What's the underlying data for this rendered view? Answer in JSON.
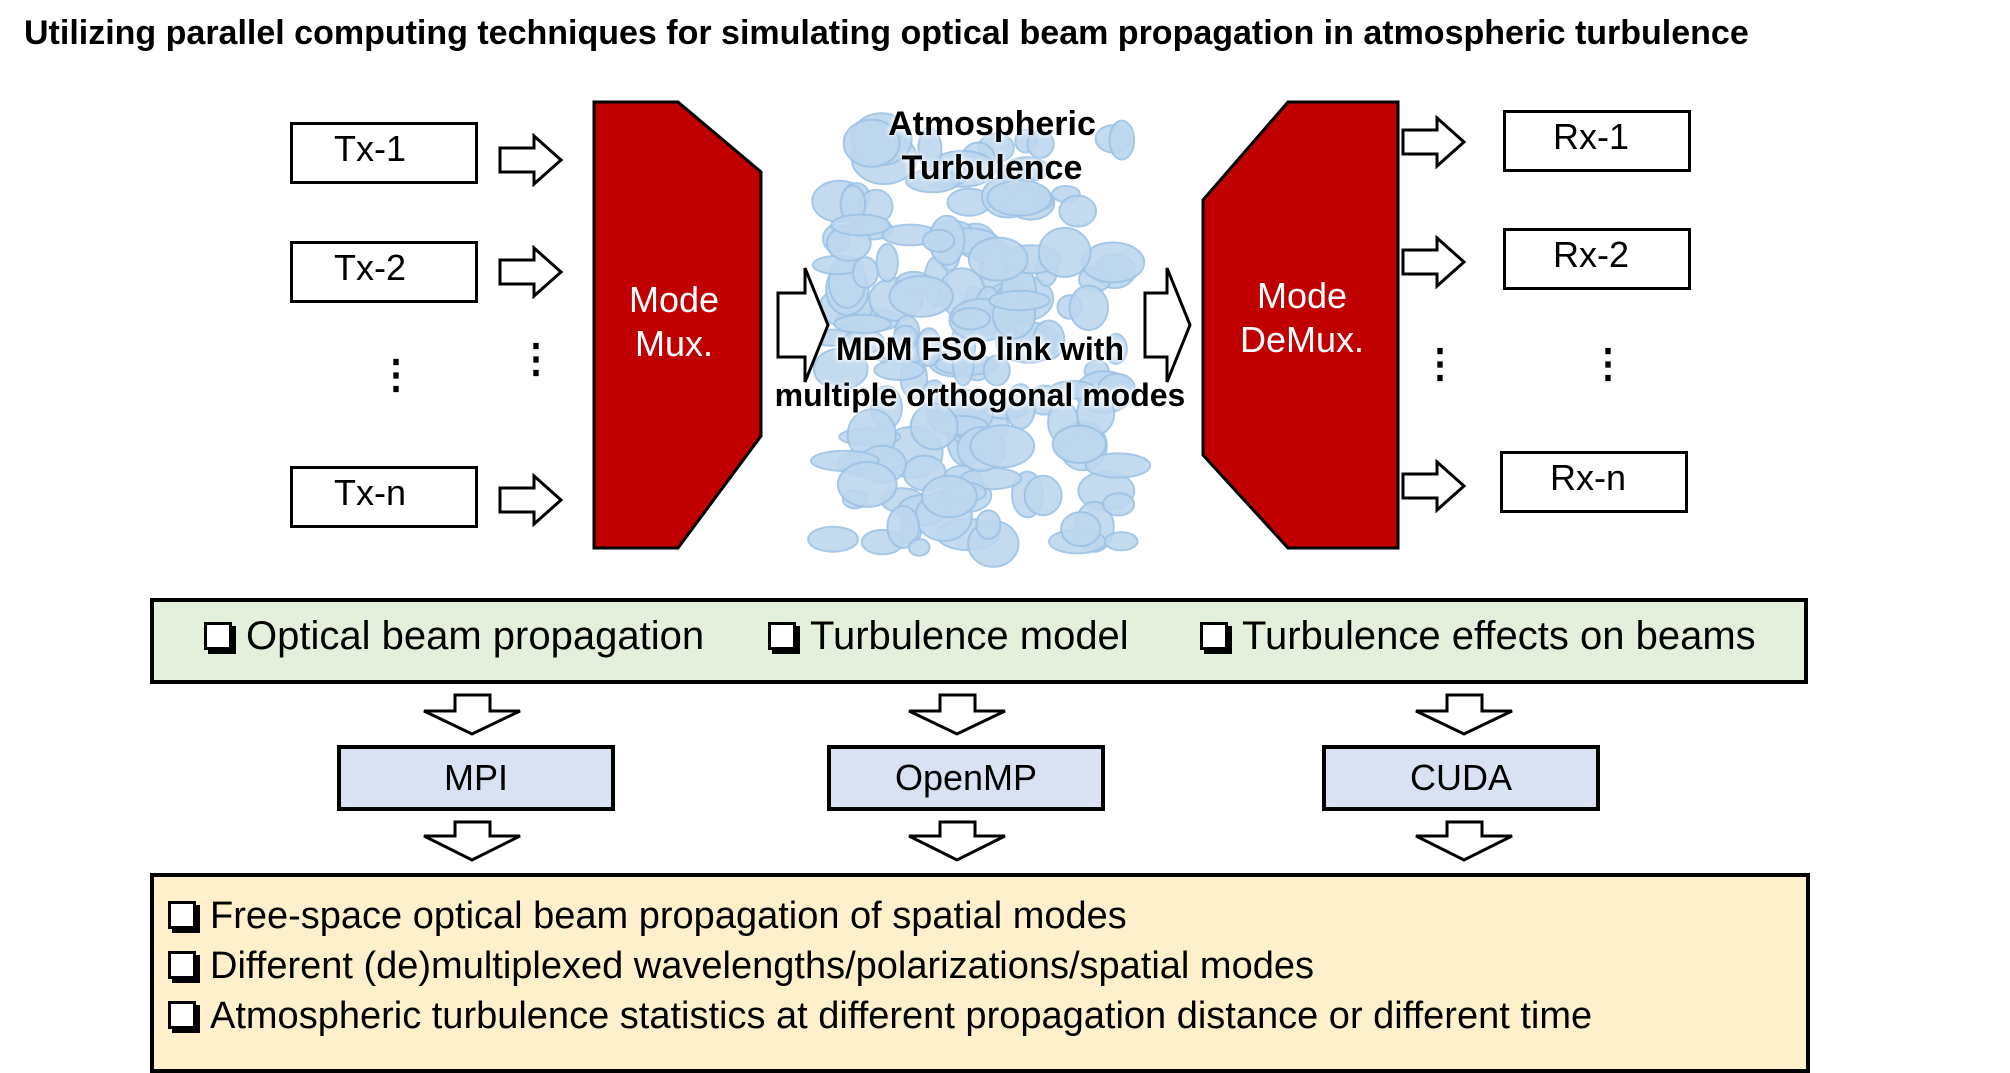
{
  "title": "Utilizing parallel computing techniques for simulating optical beam propagation in atmospheric turbulence",
  "transmitters": [
    "Tx-1",
    "Tx-2",
    "Tx-n"
  ],
  "receivers": [
    "Rx-1",
    "Rx-2",
    "Rx-n"
  ],
  "ellipsis": "⋮",
  "mux": {
    "line1": "Mode",
    "line2": "Mux."
  },
  "demux": {
    "line1": "Mode",
    "line2": "DeMux."
  },
  "turbulence": {
    "line1": "Atmospheric",
    "line2": "Turbulence"
  },
  "link": {
    "line1": "MDM FSO link with",
    "line2": "multiple orthogonal modes"
  },
  "topics": [
    "Optical beam propagation",
    "Turbulence model",
    "Turbulence effects on beams"
  ],
  "tools": [
    "MPI",
    "OpenMP",
    "CUDA"
  ],
  "outcomes": [
    "Free-space optical beam propagation of spatial modes",
    "Different (de)multiplexed wavelengths/polarizations/spatial modes",
    "Atmospheric turbulence statistics at different propagation distance or different time"
  ],
  "colors": {
    "mux_fill": "#c00000",
    "turbulence_fill": "#bdd7ee",
    "turbulence_stroke": "#9dc3e6",
    "topics_fill": "#e4f0dc",
    "tools_fill": "#d9e2f2",
    "outcomes_fill": "#fff0cc"
  }
}
